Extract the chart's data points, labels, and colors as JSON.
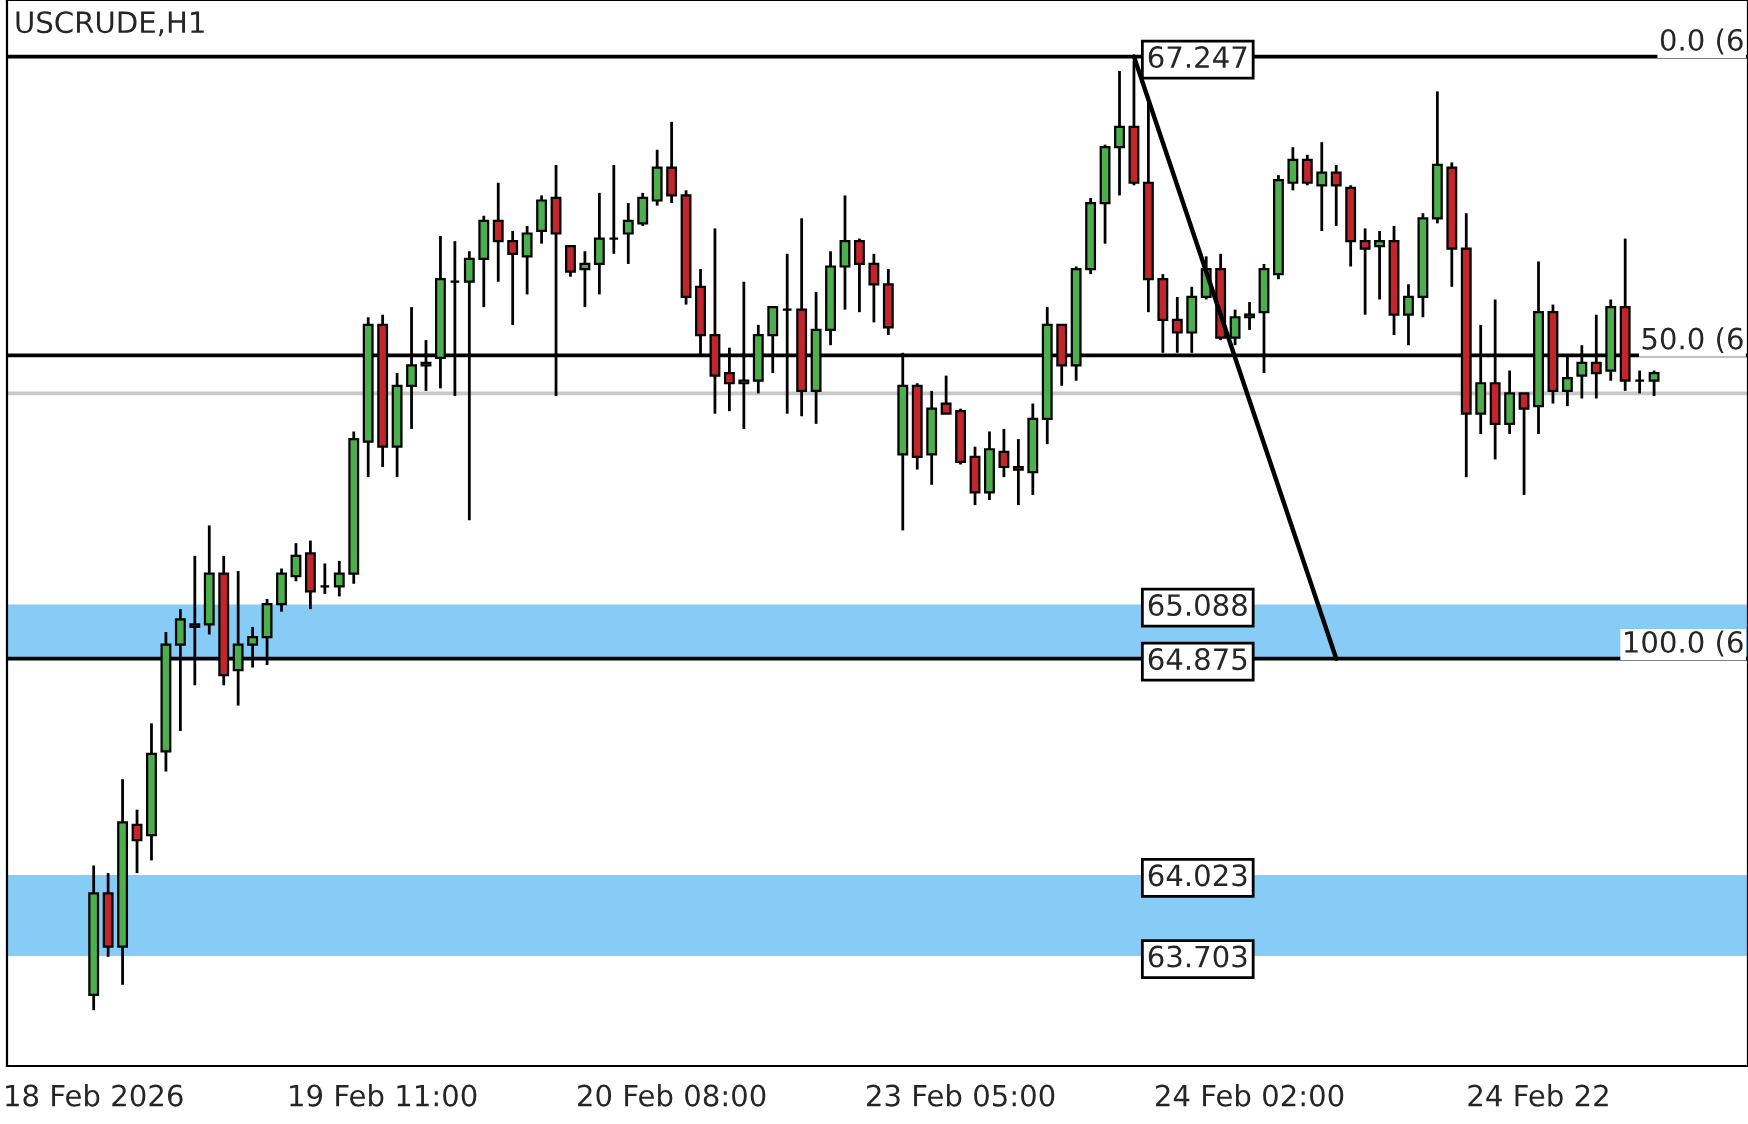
{
  "chart_data": {
    "type": "candlestick",
    "title": "USCRUDE,H1",
    "categories": [
      "18 Feb 2026",
      null,
      null,
      null,
      null,
      null,
      null,
      null,
      null,
      null,
      null,
      null,
      null,
      null,
      null,
      null,
      null,
      null,
      null,
      null,
      "19 Feb 11:00",
      null,
      null,
      null,
      null,
      null,
      null,
      null,
      null,
      null,
      null,
      null,
      null,
      null,
      null,
      null,
      null,
      null,
      null,
      null,
      "20 Feb 08:00",
      null,
      null,
      null,
      null,
      null,
      null,
      null,
      null,
      null,
      null,
      null,
      null,
      null,
      null,
      null,
      null,
      null,
      null,
      null,
      "23 Feb 05:00",
      null,
      null,
      null,
      null,
      null,
      null,
      null,
      null,
      null,
      null,
      null,
      null,
      null,
      null,
      null,
      null,
      null,
      null,
      null,
      "24 Feb 02:00",
      null,
      null,
      null,
      null,
      null,
      null,
      null,
      null,
      null,
      null,
      null,
      null,
      null,
      null,
      null,
      null,
      null,
      null,
      null,
      "24 Feb 22",
      null,
      null,
      null,
      null,
      null,
      null,
      null,
      null
    ],
    "ohlc": [
      [
        63.55,
        64.06,
        63.49,
        63.95
      ],
      [
        63.95,
        64.03,
        63.7,
        63.74
      ],
      [
        63.74,
        64.4,
        63.59,
        64.23
      ],
      [
        64.22,
        64.28,
        64.03,
        64.16
      ],
      [
        64.18,
        64.62,
        64.08,
        64.5
      ],
      [
        64.51,
        64.98,
        64.43,
        64.93
      ],
      [
        64.93,
        65.07,
        64.59,
        65.03
      ],
      [
        65.0,
        65.28,
        64.77,
        65.01
      ],
      [
        65.01,
        65.4,
        64.97,
        65.21
      ],
      [
        65.21,
        65.28,
        64.77,
        64.81
      ],
      [
        64.83,
        65.22,
        64.69,
        64.93
      ],
      [
        64.93,
        65.0,
        64.84,
        64.96
      ],
      [
        64.96,
        65.11,
        64.85,
        65.09
      ],
      [
        65.09,
        65.23,
        65.06,
        65.21
      ],
      [
        65.2,
        65.33,
        65.18,
        65.28
      ],
      [
        65.29,
        65.34,
        65.07,
        65.14
      ],
      [
        65.16,
        65.25,
        65.13,
        65.16
      ],
      [
        65.16,
        65.26,
        65.12,
        65.21
      ],
      [
        65.21,
        65.77,
        65.17,
        65.74
      ],
      [
        65.73,
        66.22,
        65.59,
        66.19
      ],
      [
        66.19,
        66.23,
        65.63,
        65.71
      ],
      [
        65.71,
        66.0,
        65.59,
        65.95
      ],
      [
        65.95,
        66.26,
        65.78,
        66.03
      ],
      [
        66.03,
        66.13,
        65.93,
        66.04
      ],
      [
        66.06,
        66.54,
        65.94,
        66.37
      ],
      [
        66.36,
        66.52,
        65.91,
        66.36
      ],
      [
        66.36,
        66.48,
        65.42,
        66.45
      ],
      [
        66.45,
        66.62,
        66.26,
        66.6
      ],
      [
        66.6,
        66.75,
        66.36,
        66.52
      ],
      [
        66.52,
        66.56,
        66.19,
        66.47
      ],
      [
        66.46,
        66.58,
        66.31,
        66.55
      ],
      [
        66.56,
        66.7,
        66.51,
        66.68
      ],
      [
        66.69,
        66.82,
        65.91,
        66.55
      ],
      [
        66.5,
        66.5,
        66.38,
        66.4
      ],
      [
        66.41,
        66.48,
        66.26,
        66.43
      ],
      [
        66.43,
        66.71,
        66.31,
        66.53
      ],
      [
        66.53,
        66.82,
        66.47,
        66.53
      ],
      [
        66.55,
        66.67,
        66.43,
        66.6
      ],
      [
        66.59,
        66.71,
        66.58,
        66.69
      ],
      [
        66.68,
        66.88,
        66.66,
        66.81
      ],
      [
        66.81,
        66.99,
        66.67,
        66.7
      ],
      [
        66.7,
        66.72,
        66.27,
        66.3
      ],
      [
        66.34,
        66.41,
        66.07,
        66.15
      ],
      [
        66.15,
        66.57,
        65.84,
        65.99
      ],
      [
        66.0,
        66.1,
        65.85,
        65.96
      ],
      [
        65.96,
        66.36,
        65.78,
        65.97
      ],
      [
        65.97,
        66.19,
        65.92,
        66.15
      ],
      [
        66.15,
        66.26,
        66.0,
        66.26
      ],
      [
        66.25,
        66.47,
        65.84,
        66.25
      ],
      [
        66.25,
        66.61,
        65.83,
        65.93
      ],
      [
        65.93,
        66.32,
        65.8,
        66.17
      ],
      [
        66.17,
        66.48,
        66.11,
        66.42
      ],
      [
        66.42,
        66.7,
        66.25,
        66.52
      ],
      [
        66.52,
        66.53,
        66.24,
        66.43
      ],
      [
        66.43,
        66.47,
        66.2,
        66.35
      ],
      [
        66.35,
        66.41,
        66.15,
        66.18
      ],
      [
        65.68,
        66.08,
        65.38,
        65.95
      ],
      [
        65.95,
        65.96,
        65.62,
        65.67
      ],
      [
        65.68,
        65.93,
        65.56,
        65.86
      ],
      [
        65.88,
        65.99,
        65.84,
        65.84
      ],
      [
        65.85,
        65.86,
        65.64,
        65.65
      ],
      [
        65.67,
        65.71,
        65.48,
        65.53
      ],
      [
        65.53,
        65.77,
        65.5,
        65.7
      ],
      [
        65.69,
        65.78,
        65.59,
        65.63
      ],
      [
        65.63,
        65.74,
        65.48,
        65.62
      ],
      [
        65.61,
        65.88,
        65.52,
        65.82
      ],
      [
        65.82,
        66.26,
        65.72,
        66.19
      ],
      [
        66.19,
        66.19,
        65.95,
        66.03
      ],
      [
        66.03,
        66.42,
        65.97,
        66.41
      ],
      [
        66.41,
        66.69,
        66.39,
        66.67
      ],
      [
        66.67,
        66.9,
        66.51,
        66.89
      ],
      [
        66.89,
        67.19,
        66.7,
        66.97
      ],
      [
        66.97,
        67.23,
        66.74,
        66.75
      ],
      [
        66.75,
        67.07,
        66.24,
        66.37
      ],
      [
        66.37,
        66.39,
        66.08,
        66.21
      ],
      [
        66.21,
        66.3,
        66.08,
        66.16
      ],
      [
        66.16,
        66.34,
        66.08,
        66.3
      ],
      [
        66.3,
        66.46,
        66.29,
        66.41
      ],
      [
        66.41,
        66.47,
        66.13,
        66.14
      ],
      [
        66.14,
        66.25,
        66.11,
        66.22
      ],
      [
        66.22,
        66.28,
        66.17,
        66.23
      ],
      [
        66.24,
        66.43,
        66.0,
        66.41
      ],
      [
        66.39,
        66.78,
        66.37,
        66.76
      ],
      [
        66.75,
        66.89,
        66.72,
        66.84
      ],
      [
        66.84,
        66.86,
        66.74,
        66.75
      ],
      [
        66.74,
        66.91,
        66.56,
        66.79
      ],
      [
        66.79,
        66.82,
        66.58,
        66.74
      ],
      [
        66.73,
        66.74,
        66.42,
        66.52
      ],
      [
        66.52,
        66.57,
        66.23,
        66.49
      ],
      [
        66.5,
        66.56,
        66.29,
        66.52
      ],
      [
        66.52,
        66.58,
        66.15,
        66.23
      ],
      [
        66.23,
        66.35,
        66.11,
        66.3
      ],
      [
        66.3,
        66.63,
        66.22,
        66.61
      ],
      [
        66.61,
        67.11,
        66.59,
        66.82
      ],
      [
        66.81,
        66.83,
        66.34,
        66.49
      ],
      [
        66.49,
        66.63,
        65.59,
        65.84
      ],
      [
        65.84,
        66.19,
        65.76,
        65.96
      ],
      [
        65.96,
        66.29,
        65.66,
        65.8
      ],
      [
        65.8,
        66.01,
        65.76,
        65.92
      ],
      [
        65.92,
        65.92,
        65.52,
        65.86
      ],
      [
        65.87,
        66.44,
        65.76,
        66.24
      ],
      [
        66.24,
        66.27,
        65.88,
        65.93
      ],
      [
        65.93,
        66.07,
        65.87,
        65.98
      ],
      [
        65.99,
        66.11,
        65.9,
        66.04
      ],
      [
        66.04,
        66.23,
        65.9,
        66.0
      ],
      [
        66.01,
        66.29,
        65.97,
        66.26
      ],
      [
        66.26,
        66.53,
        65.93,
        65.97
      ],
      [
        65.97,
        66.01,
        65.92,
        65.97
      ],
      [
        65.97,
        66.01,
        65.91,
        66.0
      ]
    ],
    "colors": [
      "#4cae4c",
      "#c0262b",
      "#4cae4c",
      "#c0262b",
      "#4cae4c",
      "#4cae4c",
      "#4cae4c",
      "#4cae4c",
      "#4cae4c",
      "#c0262b",
      "#4cae4c",
      "#4cae4c",
      "#4cae4c",
      "#4cae4c",
      "#4cae4c",
      "#c0262b",
      "#000000",
      "#4cae4c",
      "#4cae4c",
      "#4cae4c",
      "#c0262b",
      "#4cae4c",
      "#4cae4c",
      "#4cae4c",
      "#4cae4c",
      "#000000",
      "#4cae4c",
      "#4cae4c",
      "#c0262b",
      "#c0262b",
      "#4cae4c",
      "#4cae4c",
      "#c0262b",
      "#c0262b",
      "#4cae4c",
      "#4cae4c",
      "#000000",
      "#4cae4c",
      "#4cae4c",
      "#4cae4c",
      "#c0262b",
      "#c0262b",
      "#c0262b",
      "#c0262b",
      "#c0262b",
      "#4cae4c",
      "#4cae4c",
      "#4cae4c",
      "#000000",
      "#c0262b",
      "#4cae4c",
      "#4cae4c",
      "#4cae4c",
      "#c0262b",
      "#c0262b",
      "#c0262b",
      "#4cae4c",
      "#c0262b",
      "#4cae4c",
      "#c0262b",
      "#c0262b",
      "#c0262b",
      "#4cae4c",
      "#c0262b",
      "#c0262b",
      "#4cae4c",
      "#4cae4c",
      "#c0262b",
      "#4cae4c",
      "#4cae4c",
      "#4cae4c",
      "#4cae4c",
      "#c0262b",
      "#c0262b",
      "#c0262b",
      "#c0262b",
      "#4cae4c",
      "#4cae4c",
      "#c0262b",
      "#4cae4c",
      "#4cae4c",
      "#4cae4c",
      "#4cae4c",
      "#4cae4c",
      "#c0262b",
      "#4cae4c",
      "#c0262b",
      "#c0262b",
      "#c0262b",
      "#4cae4c",
      "#c0262b",
      "#4cae4c",
      "#4cae4c",
      "#4cae4c",
      "#c0262b",
      "#c0262b",
      "#4cae4c",
      "#c0262b",
      "#4cae4c",
      "#c0262b",
      "#4cae4c",
      "#c0262b",
      "#4cae4c",
      "#4cae4c",
      "#c0262b",
      "#4cae4c",
      "#c0262b",
      "#000000",
      "#4cae4c"
    ],
    "series": [
      {
        "type": "line",
        "color": "#000000",
        "values": [
          null,
          null,
          null,
          null,
          null,
          null,
          null,
          null,
          null,
          null,
          null,
          null,
          null,
          null,
          null,
          null,
          null,
          null,
          null,
          null,
          null,
          null,
          null,
          null,
          null,
          null,
          null,
          null,
          null,
          null,
          null,
          null,
          null,
          null,
          null,
          null,
          null,
          null,
          null,
          null,
          null,
          null,
          null,
          null,
          null,
          null,
          null,
          null,
          null,
          null,
          null,
          null,
          null,
          null,
          null,
          null,
          null,
          null,
          null,
          null,
          null,
          null,
          null,
          null,
          null,
          null,
          null,
          null,
          null,
          null,
          null,
          null,
          67.247,
          null,
          null,
          null,
          null,
          null,
          null,
          null,
          null,
          null,
          null,
          null,
          null,
          null,
          64.875,
          null,
          null,
          null,
          null,
          null,
          null,
          null,
          null,
          null,
          null,
          null,
          null,
          null,
          null,
          null,
          null,
          null,
          null,
          null,
          null,
          null,
          null
        ]
      }
    ],
    "ylim": [
      63.27,
      67.47
    ],
    "yticks": [
      67.247,
      65.088,
      64.875,
      64.023,
      63.703
    ],
    "grid": false,
    "ref_lines": [
      {
        "axis": "y",
        "value": 67.247,
        "color": "#000000"
      },
      {
        "axis": "y",
        "value": 64.875,
        "color": "#000000"
      },
      {
        "axis": "y",
        "value": 66.07,
        "color": "#000000"
      },
      {
        "axis": "y",
        "value": 65.92,
        "color": "#c8c8c8"
      }
    ],
    "bands": [
      {
        "axis": "y",
        "from": 64.875,
        "to": 65.088,
        "color": "#87cbf7"
      },
      {
        "axis": "y",
        "from": 63.703,
        "to": 64.023,
        "color": "#87cbf7"
      }
    ],
    "annotations": [
      {
        "text": "0.0 (6",
        "y": 67.247
      },
      {
        "text": "50.0 (6",
        "y": 66.07
      },
      {
        "text": "100.0 (6",
        "y": 64.875
      }
    ]
  }
}
